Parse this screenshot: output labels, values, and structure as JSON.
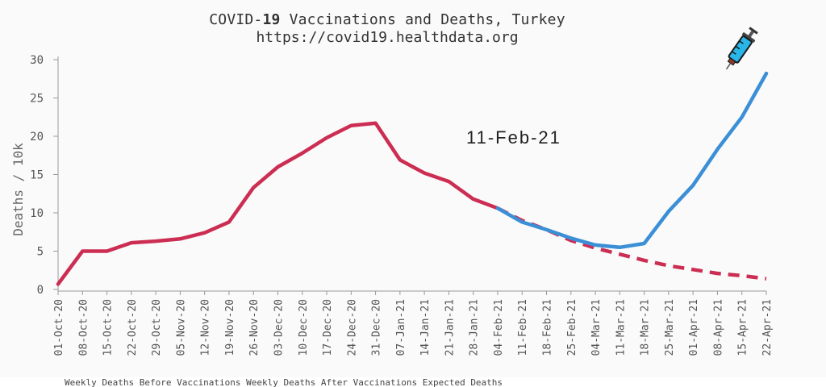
{
  "header": {
    "title_prefix": "COVID-",
    "title_num": "19",
    "title_suffix": " Vaccinations and Deaths, Turkey",
    "subtitle": "https://covid19.healthdata.org"
  },
  "annotation_date": "11-Feb-21",
  "icons": {
    "syringe": "syringe-icon"
  },
  "colors": {
    "red": "#cc2d52",
    "blue": "#3b8fd6",
    "axis": "#999999",
    "text": "#555555"
  },
  "legend_text": "Weekly Deaths Before Vaccinations     Weekly Deaths After Vaccinations     Expected Deaths",
  "chart_data": {
    "type": "line",
    "title": "COVID-19 Vaccinations and Deaths, Turkey",
    "subtitle": "https://covid19.healthdata.org",
    "xlabel": "",
    "ylabel": "Deaths / 10k",
    "ylim": [
      0,
      30
    ],
    "yticks": [
      0,
      5,
      10,
      15,
      20,
      25,
      30
    ],
    "categories": [
      "01-Oct-20",
      "08-Oct-20",
      "15-Oct-20",
      "22-Oct-20",
      "29-Oct-20",
      "05-Nov-20",
      "12-Nov-20",
      "19-Nov-20",
      "26-Nov-20",
      "03-Dec-20",
      "10-Dec-20",
      "17-Dec-20",
      "24-Dec-20",
      "31-Dec-20",
      "07-Jan-21",
      "14-Jan-21",
      "21-Jan-21",
      "28-Jan-21",
      "04-Feb-21",
      "11-Feb-21",
      "18-Feb-21",
      "25-Feb-21",
      "04-Mar-21",
      "11-Mar-21",
      "18-Mar-21",
      "25-Mar-21",
      "01-Apr-21",
      "08-Apr-21",
      "15-Apr-21",
      "22-Apr-21"
    ],
    "series": [
      {
        "style": "solid",
        "color": "#cc2d52",
        "values": [
          0.7,
          5.0,
          5.0,
          6.1,
          6.3,
          6.6,
          7.4,
          8.8,
          13.3,
          16.0,
          17.8,
          19.8,
          21.4,
          21.7,
          16.9,
          15.2,
          14.1,
          11.8,
          10.6,
          null,
          null,
          null,
          null,
          null,
          null,
          null,
          null,
          null,
          null,
          null
        ]
      },
      {
        "style": "solid",
        "color": "#3b8fd6",
        "values": [
          null,
          null,
          null,
          null,
          null,
          null,
          null,
          null,
          null,
          null,
          null,
          null,
          null,
          null,
          null,
          null,
          null,
          null,
          10.6,
          8.8,
          7.8,
          6.7,
          5.8,
          5.5,
          6.0,
          10.2,
          13.6,
          18.3,
          22.5,
          28.2
        ]
      },
      {
        "style": "dashed",
        "color": "#cc2d52",
        "values": [
          null,
          null,
          null,
          null,
          null,
          null,
          null,
          null,
          null,
          null,
          null,
          null,
          null,
          null,
          null,
          null,
          null,
          null,
          10.6,
          9.0,
          7.8,
          6.4,
          5.4,
          4.6,
          3.8,
          3.1,
          2.6,
          2.1,
          1.8,
          1.4
        ]
      }
    ]
  }
}
